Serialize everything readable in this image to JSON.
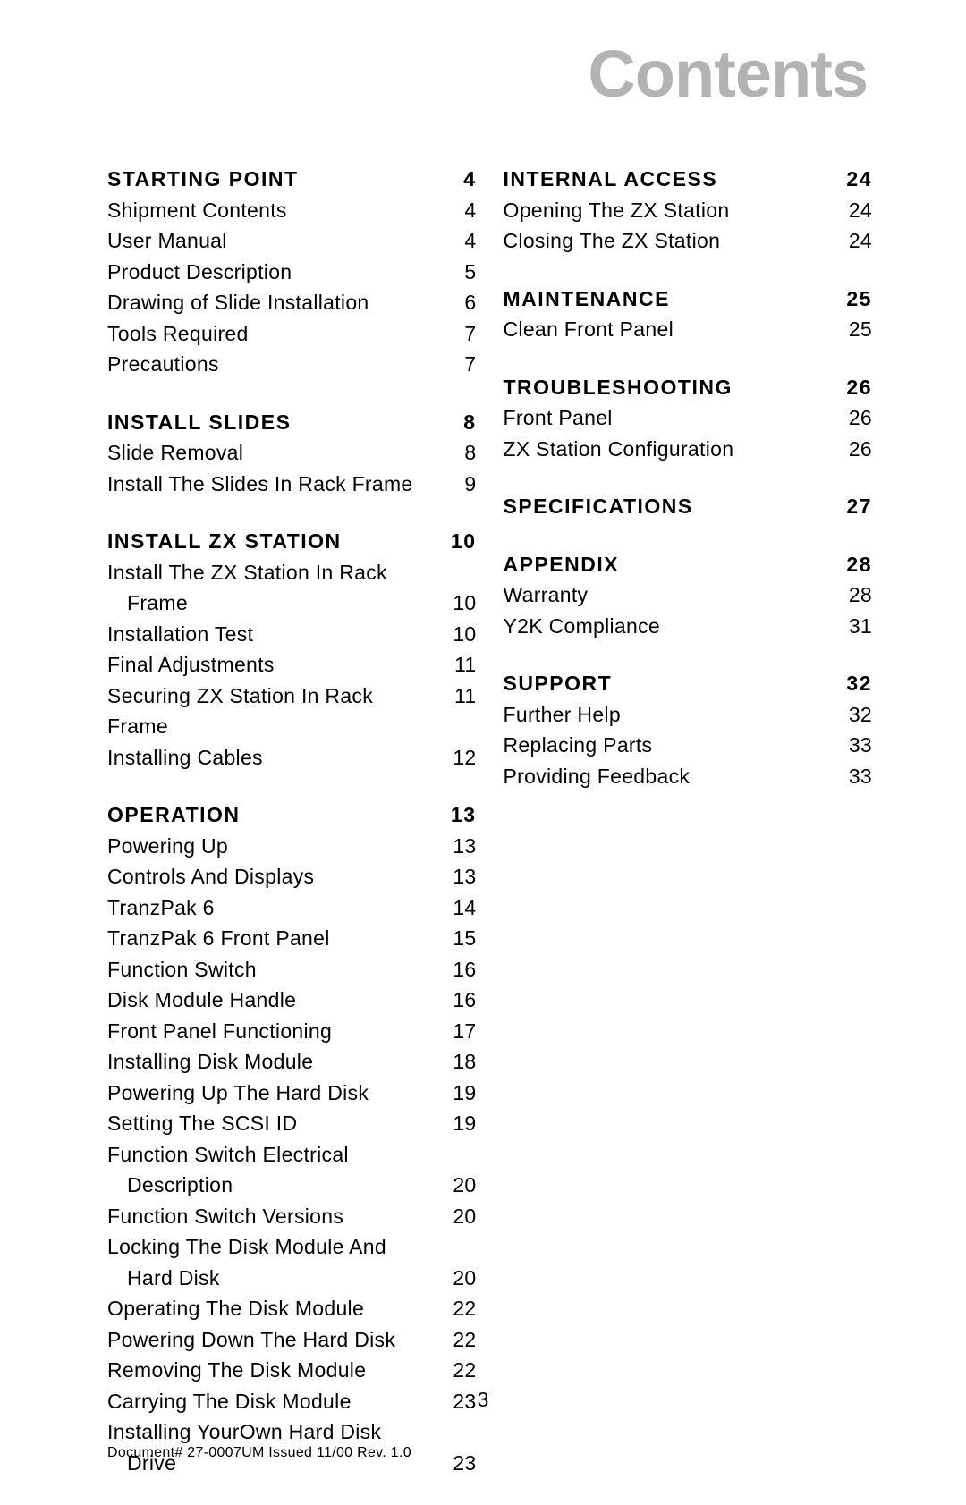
{
  "title": "Contents",
  "page_number": "3",
  "footer": "Document# 27-0007UM Issued 11/00  Rev. 1.0",
  "colors": {
    "title": "#b3b3b3",
    "text": "#000000",
    "background": "#ffffff"
  },
  "typography": {
    "title_fontsize": 74,
    "title_weight": 800,
    "body_fontsize": 23,
    "footer_fontsize": 16,
    "heading_letter_spacing": 1.5
  },
  "columns": [
    {
      "sections": [
        {
          "heading": "STARTING POINT",
          "page": "4",
          "items": [
            {
              "label": "Shipment Contents",
              "page": "4"
            },
            {
              "label": "User Manual",
              "page": "4"
            },
            {
              "label": "Product Description",
              "page": "5"
            },
            {
              "label": "Drawing of Slide Installation",
              "page": "6"
            },
            {
              "label": "Tools Required",
              "page": "7"
            },
            {
              "label": "Precautions",
              "page": "7"
            }
          ]
        },
        {
          "heading": "INSTALL SLIDES",
          "page": "8",
          "items": [
            {
              "label": "Slide Removal",
              "page": "8"
            },
            {
              "label": "Install The Slides In Rack Frame",
              "page": "9"
            }
          ]
        },
        {
          "heading": "INSTALL ZX STATION",
          "page": "10",
          "items": [
            {
              "label": "Install The ZX Station In Rack",
              "page": "",
              "wrap": true
            },
            {
              "label": "Frame",
              "page": "10",
              "indent": true
            },
            {
              "label": "Installation Test",
              "page": "10"
            },
            {
              "label": "Final Adjustments",
              "page": "11"
            },
            {
              "label": "Securing ZX Station In Rack Frame",
              "page": "11"
            },
            {
              "label": "Installing Cables",
              "page": "12"
            }
          ]
        },
        {
          "heading": "OPERATION",
          "page": "13",
          "items": [
            {
              "label": "Powering Up",
              "page": "13"
            },
            {
              "label": "Controls And Displays",
              "page": "13"
            },
            {
              "label": "TranzPak 6",
              "page": "14"
            },
            {
              "label": "TranzPak 6 Front Panel",
              "page": "15"
            },
            {
              "label": "Function Switch",
              "page": "16"
            },
            {
              "label": "Disk Module Handle",
              "page": "16"
            },
            {
              "label": "Front Panel Functioning",
              "page": "17"
            },
            {
              "label": "Installing Disk Module",
              "page": "18"
            },
            {
              "label": "Powering Up The Hard Disk",
              "page": "19"
            },
            {
              "label": "Setting The SCSI ID",
              "page": "19"
            },
            {
              "label": "Function Switch Electrical",
              "page": "",
              "wrap": true
            },
            {
              "label": "Description",
              "page": "20",
              "indent": true
            },
            {
              "label": "Function Switch Versions",
              "page": "20"
            },
            {
              "label": "Locking The Disk Module And",
              "page": "",
              "wrap": true
            },
            {
              "label": "Hard Disk",
              "page": "20",
              "indent": true
            },
            {
              "label": "Operating The Disk Module",
              "page": "22"
            },
            {
              "label": "Powering Down The Hard Disk",
              "page": "22"
            },
            {
              "label": "Removing The Disk Module",
              "page": "22"
            },
            {
              "label": "Carrying The Disk Module",
              "page": "23"
            },
            {
              "label": "Installing YourOwn Hard Disk",
              "page": "",
              "wrap": true
            },
            {
              "label": "Drive",
              "page": "23",
              "indent": true
            }
          ]
        }
      ]
    },
    {
      "sections": [
        {
          "heading": "INTERNAL ACCESS",
          "page": "24",
          "items": [
            {
              "label": "Opening The ZX Station",
              "page": "24"
            },
            {
              "label": "Closing The ZX Station",
              "page": "24"
            }
          ]
        },
        {
          "heading": "MAINTENANCE",
          "page": "25",
          "items": [
            {
              "label": "Clean Front Panel",
              "page": "25"
            }
          ]
        },
        {
          "heading": "TROUBLESHOOTING",
          "page": "26",
          "items": [
            {
              "label": "Front Panel",
              "page": "26"
            },
            {
              "label": "ZX Station Configuration",
              "page": "26"
            }
          ]
        },
        {
          "heading": "SPECIFICATIONS",
          "page": "27",
          "items": []
        },
        {
          "heading": "APPENDIX",
          "page": "28",
          "items": [
            {
              "label": "Warranty",
              "page": "28"
            },
            {
              "label": "Y2K Compliance",
              "page": "31"
            }
          ]
        },
        {
          "heading": "SUPPORT",
          "page": "32",
          "items": [
            {
              "label": "Further Help",
              "page": "32"
            },
            {
              "label": "Replacing Parts",
              "page": "33"
            },
            {
              "label": "Providing Feedback",
              "page": "33"
            }
          ]
        }
      ]
    }
  ]
}
